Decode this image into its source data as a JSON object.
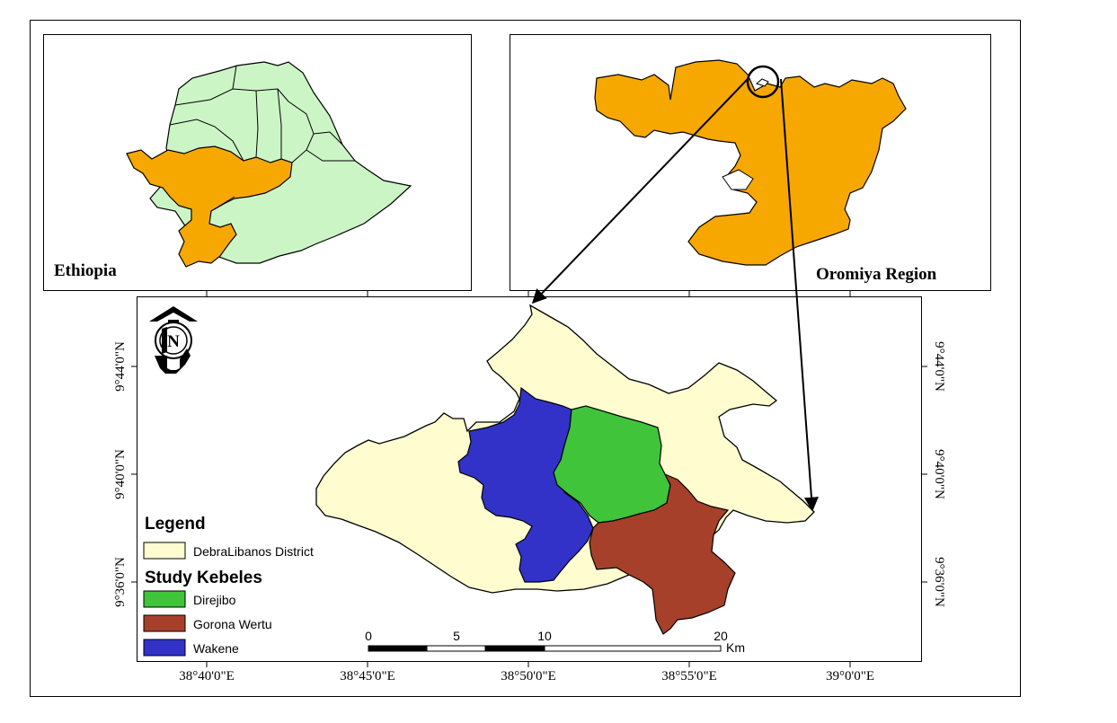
{
  "inset_ethiopia": {
    "title": "Ethiopia",
    "colors": {
      "country": "#ccf5c6",
      "oromiya": "#f7a800"
    }
  },
  "inset_oromiya": {
    "title": "Oromiya Region",
    "colors": {
      "region": "#f7a800"
    }
  },
  "main_map": {
    "north_arrow_letter": "N",
    "lat_labels": [
      "9°44'0\"N",
      "9°40'0\"N",
      "9°36'0\"N"
    ],
    "lon_labels": [
      "38°40'0\"E",
      "38°45'0\"E",
      "38°50'0\"E",
      "38°55'0\"E",
      "39°0'0\"E"
    ],
    "colors": {
      "district": "#fffdd0",
      "direjibo": "#3fc43a",
      "gorona_wertu": "#a6402a",
      "wakene": "#3232c8"
    }
  },
  "legend": {
    "title": "Legend",
    "district_label": "DebraLibanos District",
    "kebeles_title": "Study Kebeles",
    "items": [
      "Direjibo",
      "Gorona Wertu",
      "Wakene"
    ]
  },
  "scale_bar": {
    "ticks": [
      "0",
      "5",
      "10",
      "20"
    ],
    "unit": "Km"
  }
}
